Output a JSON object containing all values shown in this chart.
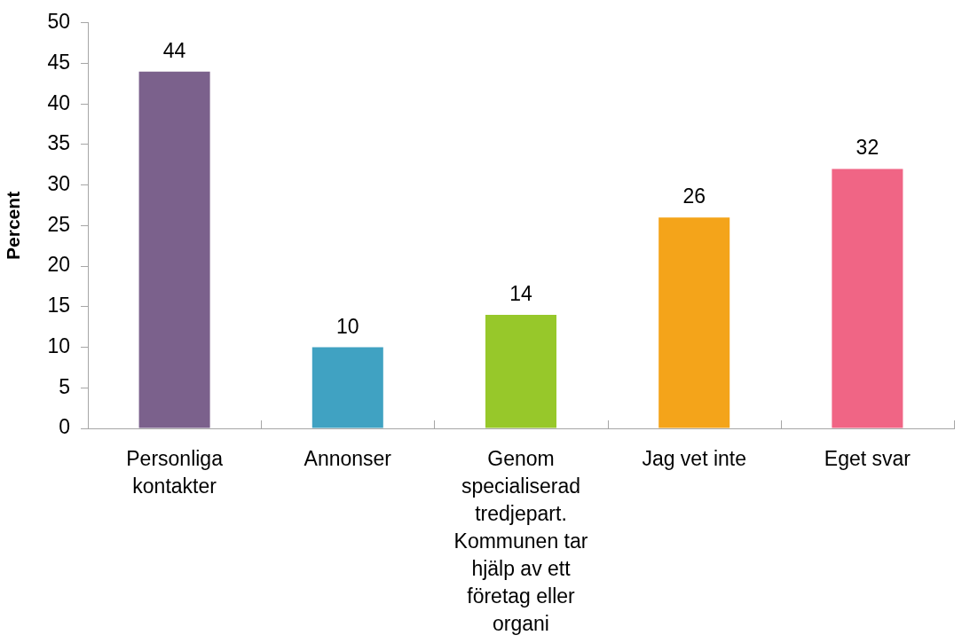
{
  "chart_data": {
    "type": "bar",
    "ylabel": "Percent",
    "categories": [
      "Personliga kontakter",
      "Annonser",
      "Genom specialiserad tredjepart. Kommunen tar hjälp av ett företag eller organi",
      "Jag vet inte",
      "Eget svar"
    ],
    "values": [
      44,
      10,
      14,
      26,
      32
    ],
    "colors": [
      "#7b618c",
      "#40a2c2",
      "#97c82a",
      "#f4a41a",
      "#f06585"
    ],
    "ylim": [
      0,
      50
    ],
    "yticks": [
      0,
      5,
      10,
      15,
      20,
      25,
      30,
      35,
      40,
      45,
      50
    ],
    "data_labels": true
  }
}
